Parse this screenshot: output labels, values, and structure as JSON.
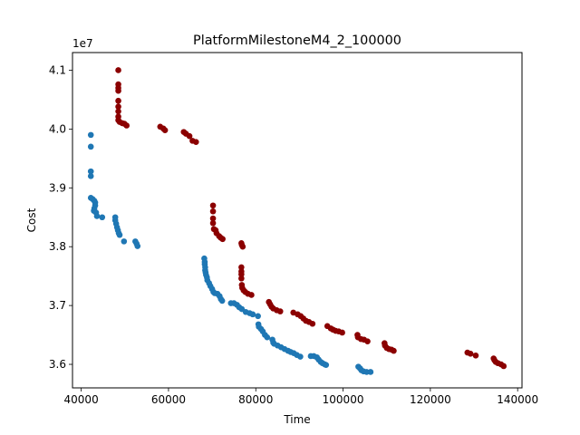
{
  "chart_data": {
    "type": "scatter",
    "title": "PlatformMilestoneM4_2_100000",
    "xlabel": "Time",
    "ylabel": "Cost",
    "y_multiplier_label": "1e7",
    "xlim": [
      38000,
      141000
    ],
    "ylim": [
      35600000,
      41300000
    ],
    "xticks": [
      40000,
      60000,
      80000,
      100000,
      120000,
      140000
    ],
    "xtick_labels": [
      "40000",
      "60000",
      "80000",
      "100000",
      "120000",
      "140000"
    ],
    "yticks": [
      36000000,
      37000000,
      38000000,
      39000000,
      40000000,
      41000000
    ],
    "ytick_labels": [
      "3.6",
      "3.7",
      "3.8",
      "3.9",
      "4.0",
      "4.1"
    ],
    "grid": false,
    "series": [
      {
        "color": "#1f77b4",
        "points": [
          [
            42200,
            39900000
          ],
          [
            42200,
            39700000
          ],
          [
            42200,
            39280000
          ],
          [
            42200,
            39200000
          ],
          [
            42200,
            38830000
          ],
          [
            42600,
            38810000
          ],
          [
            43000,
            38780000
          ],
          [
            43200,
            38750000
          ],
          [
            43200,
            38700000
          ],
          [
            43000,
            38650000
          ],
          [
            42900,
            38610000
          ],
          [
            43400,
            38580000
          ],
          [
            43600,
            38520000
          ],
          [
            44800,
            38500000
          ],
          [
            47800,
            38500000
          ],
          [
            47800,
            38450000
          ],
          [
            48000,
            38390000
          ],
          [
            48200,
            38330000
          ],
          [
            48400,
            38280000
          ],
          [
            48600,
            38230000
          ],
          [
            48800,
            38200000
          ],
          [
            49800,
            38090000
          ],
          [
            52400,
            38090000
          ],
          [
            52700,
            38050000
          ],
          [
            52900,
            38010000
          ],
          [
            68200,
            37800000
          ],
          [
            68300,
            37740000
          ],
          [
            68300,
            37700000
          ],
          [
            68400,
            37650000
          ],
          [
            68400,
            37600000
          ],
          [
            68500,
            37560000
          ],
          [
            68600,
            37520000
          ],
          [
            68800,
            37480000
          ],
          [
            68900,
            37430000
          ],
          [
            69300,
            37380000
          ],
          [
            69600,
            37330000
          ],
          [
            70000,
            37280000
          ],
          [
            70300,
            37230000
          ],
          [
            70600,
            37210000
          ],
          [
            71200,
            37200000
          ],
          [
            71700,
            37160000
          ],
          [
            72000,
            37110000
          ],
          [
            72300,
            37080000
          ],
          [
            74300,
            37040000
          ],
          [
            75000,
            37040000
          ],
          [
            75700,
            37010000
          ],
          [
            76200,
            36970000
          ],
          [
            76800,
            36940000
          ],
          [
            77700,
            36890000
          ],
          [
            78600,
            36870000
          ],
          [
            79300,
            36850000
          ],
          [
            80500,
            36820000
          ],
          [
            80600,
            36680000
          ],
          [
            80700,
            36640000
          ],
          [
            81200,
            36600000
          ],
          [
            81600,
            36560000
          ],
          [
            82100,
            36500000
          ],
          [
            82600,
            36460000
          ],
          [
            83800,
            36420000
          ],
          [
            84000,
            36370000
          ],
          [
            84200,
            36350000
          ],
          [
            85000,
            36320000
          ],
          [
            85800,
            36290000
          ],
          [
            86600,
            36260000
          ],
          [
            87400,
            36230000
          ],
          [
            88000,
            36210000
          ],
          [
            88700,
            36190000
          ],
          [
            89400,
            36160000
          ],
          [
            90200,
            36130000
          ],
          [
            92600,
            36140000
          ],
          [
            93300,
            36140000
          ],
          [
            94000,
            36120000
          ],
          [
            94400,
            36080000
          ],
          [
            94900,
            36040000
          ],
          [
            95300,
            36020000
          ],
          [
            95800,
            36000000
          ],
          [
            96100,
            35990000
          ],
          [
            103500,
            35960000
          ],
          [
            103900,
            35930000
          ],
          [
            104200,
            35900000
          ],
          [
            104700,
            35880000
          ],
          [
            105400,
            35870000
          ],
          [
            106300,
            35870000
          ]
        ]
      },
      {
        "color": "#8b0000",
        "points": [
          [
            48500,
            41000000
          ],
          [
            48500,
            40760000
          ],
          [
            48500,
            40700000
          ],
          [
            48500,
            40650000
          ],
          [
            48500,
            40480000
          ],
          [
            48500,
            40380000
          ],
          [
            48500,
            40300000
          ],
          [
            48500,
            40210000
          ],
          [
            48500,
            40150000
          ],
          [
            48800,
            40120000
          ],
          [
            49400,
            40100000
          ],
          [
            49900,
            40090000
          ],
          [
            50400,
            40060000
          ],
          [
            58100,
            40040000
          ],
          [
            58800,
            40010000
          ],
          [
            59200,
            39980000
          ],
          [
            63500,
            39950000
          ],
          [
            64000,
            39920000
          ],
          [
            64800,
            39880000
          ],
          [
            65500,
            39800000
          ],
          [
            66300,
            39780000
          ],
          [
            70200,
            38700000
          ],
          [
            70200,
            38600000
          ],
          [
            70200,
            38480000
          ],
          [
            70200,
            38400000
          ],
          [
            70400,
            38300000
          ],
          [
            70800,
            38280000
          ],
          [
            71000,
            38230000
          ],
          [
            71600,
            38180000
          ],
          [
            72000,
            38150000
          ],
          [
            72400,
            38130000
          ],
          [
            76700,
            38060000
          ],
          [
            76800,
            38030000
          ],
          [
            77000,
            38000000
          ],
          [
            76700,
            37650000
          ],
          [
            76700,
            37580000
          ],
          [
            76700,
            37530000
          ],
          [
            76700,
            37460000
          ],
          [
            76800,
            37350000
          ],
          [
            76900,
            37300000
          ],
          [
            77200,
            37260000
          ],
          [
            77600,
            37230000
          ],
          [
            78200,
            37200000
          ],
          [
            79000,
            37180000
          ],
          [
            83000,
            37060000
          ],
          [
            83300,
            37020000
          ],
          [
            83600,
            36980000
          ],
          [
            84000,
            36950000
          ],
          [
            84800,
            36920000
          ],
          [
            85600,
            36900000
          ],
          [
            88600,
            36880000
          ],
          [
            89600,
            36850000
          ],
          [
            90300,
            36820000
          ],
          [
            90900,
            36780000
          ],
          [
            91500,
            36740000
          ],
          [
            92200,
            36720000
          ],
          [
            93000,
            36690000
          ],
          [
            96400,
            36650000
          ],
          [
            97200,
            36610000
          ],
          [
            97700,
            36590000
          ],
          [
            98300,
            36570000
          ],
          [
            99000,
            36560000
          ],
          [
            99800,
            36540000
          ],
          [
            103300,
            36500000
          ],
          [
            103400,
            36460000
          ],
          [
            104100,
            36430000
          ],
          [
            104800,
            36420000
          ],
          [
            105600,
            36390000
          ],
          [
            109500,
            36360000
          ],
          [
            109600,
            36320000
          ],
          [
            110000,
            36280000
          ],
          [
            110500,
            36260000
          ],
          [
            111100,
            36250000
          ],
          [
            111600,
            36230000
          ],
          [
            128500,
            36200000
          ],
          [
            129200,
            36180000
          ],
          [
            130400,
            36150000
          ],
          [
            134500,
            36100000
          ],
          [
            134700,
            36070000
          ],
          [
            135000,
            36040000
          ],
          [
            135500,
            36020000
          ],
          [
            136200,
            36000000
          ],
          [
            136800,
            35970000
          ]
        ]
      }
    ]
  }
}
